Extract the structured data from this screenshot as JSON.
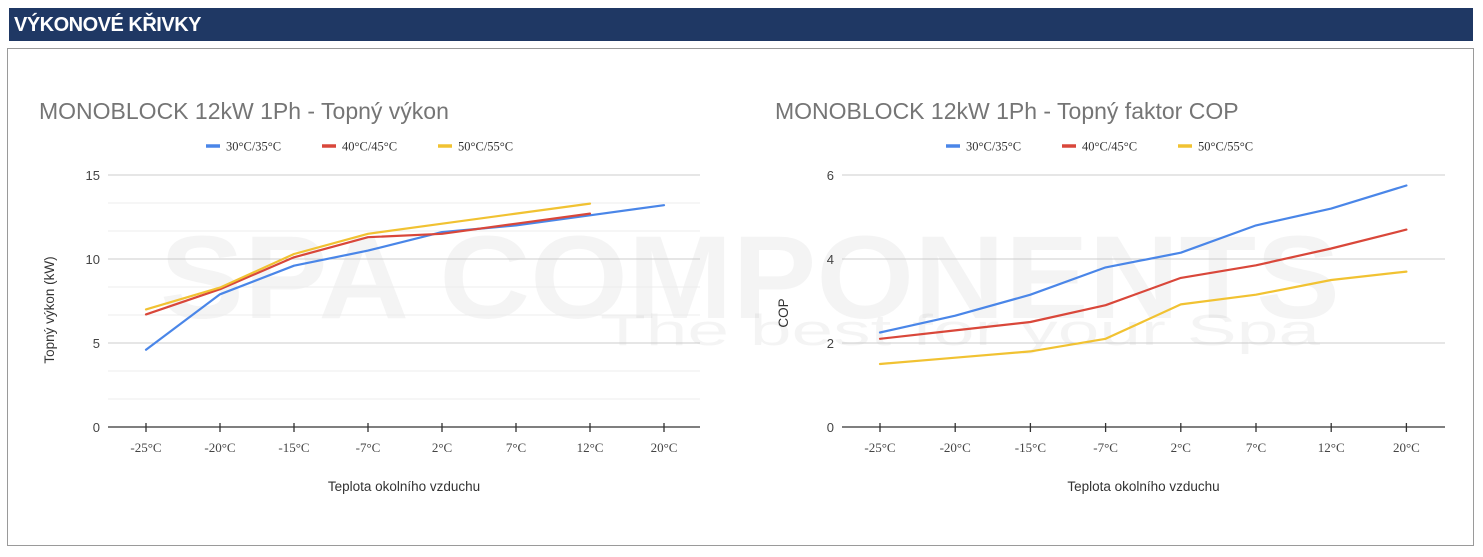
{
  "header": {
    "title": "VÝKONOVÉ KŘIVKY"
  },
  "watermark": {
    "brand": "SPA COMPONENTS",
    "tagline": "The best for your Spa"
  },
  "colors": {
    "header_bg": "#1f3864",
    "series_blue": "#4a86e8",
    "series_red": "#d9473a",
    "series_yellow": "#f1c232",
    "title_gray": "#757575"
  },
  "chart_data": [
    {
      "type": "line",
      "title": "MONOBLOCK 12kW 1Ph - Topný výkon",
      "xlabel": "Teplota okolního vzduchu",
      "ylabel": "Topný výkon (kW)",
      "categories": [
        "-25°C",
        "-20°C",
        "-15°C",
        "-7°C",
        "2°C",
        "7°C",
        "12°C",
        "20°C"
      ],
      "ylim": [
        0,
        15
      ],
      "yticks": [
        0,
        5,
        10,
        15
      ],
      "grid": true,
      "legend": "top",
      "series": [
        {
          "name": "30°C/35°C",
          "color": "#4a86e8",
          "values": [
            4.6,
            7.9,
            9.6,
            10.5,
            11.6,
            12.0,
            12.6,
            13.2
          ]
        },
        {
          "name": "40°C/45°C",
          "color": "#d9473a",
          "values": [
            6.7,
            8.2,
            10.1,
            11.3,
            11.5,
            12.1,
            12.7,
            null
          ]
        },
        {
          "name": "50°C/55°C",
          "color": "#f1c232",
          "values": [
            7.0,
            8.3,
            10.3,
            11.5,
            12.1,
            12.7,
            13.3,
            null
          ]
        }
      ]
    },
    {
      "type": "line",
      "title": "MONOBLOCK 12kW 1Ph - Topný faktor COP",
      "xlabel": "Teplota okolního vzduchu",
      "ylabel": "COP",
      "categories": [
        "-25°C",
        "-20°C",
        "-15°C",
        "-7°C",
        "2°C",
        "7°C",
        "12°C",
        "20°C"
      ],
      "ylim": [
        0,
        6
      ],
      "yticks": [
        0,
        2,
        4,
        6
      ],
      "grid": true,
      "legend": "top",
      "series": [
        {
          "name": "30°C/35°C",
          "color": "#4a86e8",
          "values": [
            2.25,
            2.65,
            3.15,
            3.8,
            4.15,
            4.8,
            5.2,
            5.75
          ]
        },
        {
          "name": "40°C/45°C",
          "color": "#d9473a",
          "values": [
            2.1,
            2.3,
            2.5,
            2.9,
            3.55,
            3.85,
            4.25,
            4.7
          ]
        },
        {
          "name": "50°C/55°C",
          "color": "#f1c232",
          "values": [
            1.5,
            1.65,
            1.8,
            2.1,
            2.92,
            3.15,
            3.5,
            3.7
          ]
        }
      ]
    }
  ]
}
